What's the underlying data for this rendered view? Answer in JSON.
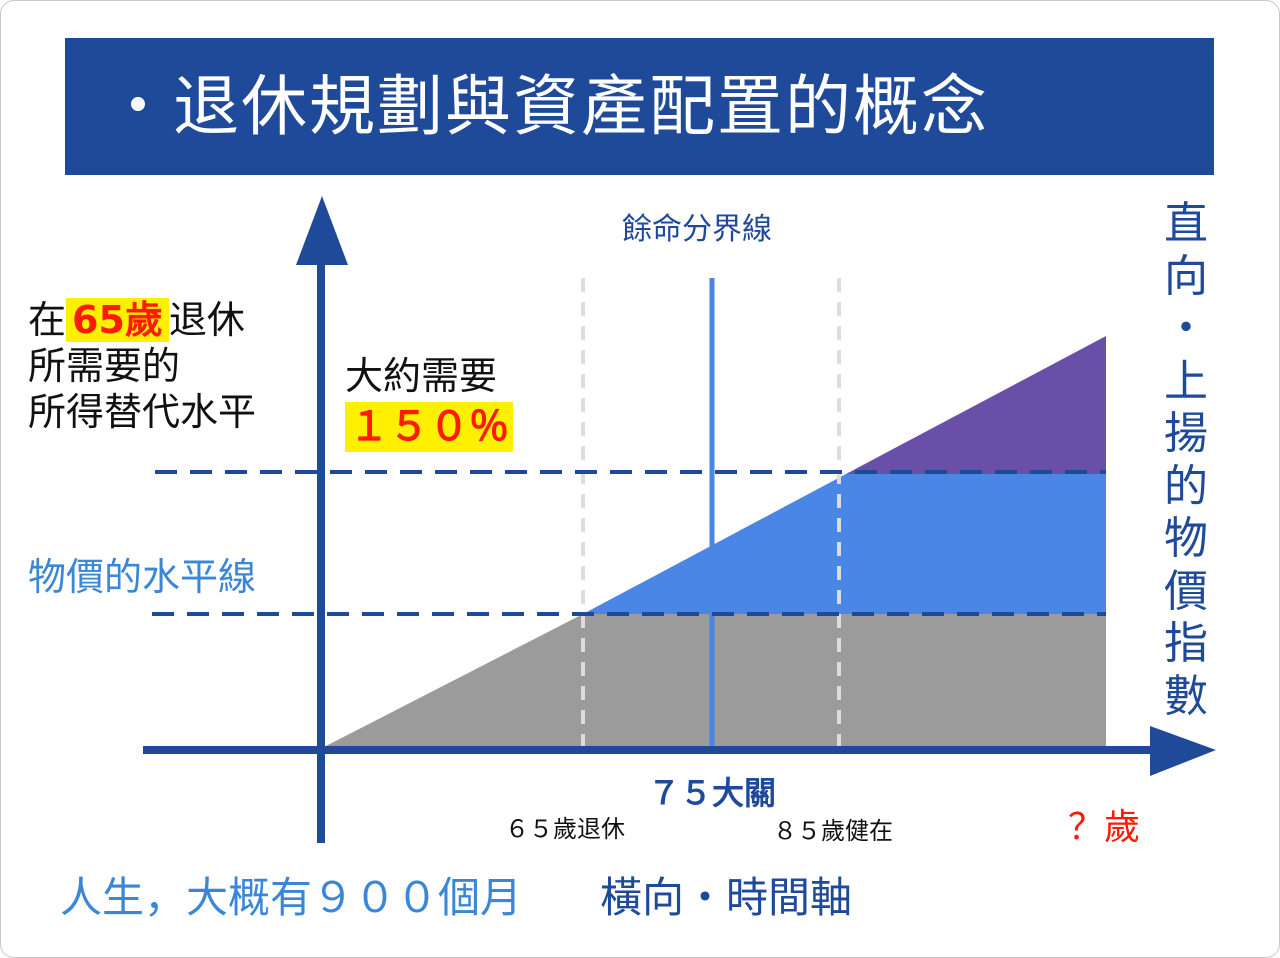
{
  "title": "・退休規劃與資產配置的概念",
  "left_label": {
    "line1_prefix": "在",
    "line1_age": "65歲",
    "line1_suffix": "退休",
    "line2": "所需要的",
    "line3": "所得替代水平"
  },
  "need_label": {
    "line1": "大約需要",
    "percent": "１５０％"
  },
  "price_level_label": "物價的水平線",
  "life_boundary_label": "餘命分界線",
  "vertical_axis_label": [
    "直",
    "向",
    "・",
    "上",
    "揚",
    "的",
    "物",
    "價",
    "指",
    "數"
  ],
  "x_labels": {
    "retire": "６５歲退休",
    "milestone": "７５大關",
    "healthy": "８５歲健在",
    "unknown": "？歲"
  },
  "bottom": {
    "life_months": "人生，大概有９００個月",
    "horizontal_axis": "橫向・時間軸"
  },
  "colors": {
    "title_bg": "#1f4a9a",
    "axis": "#1f4a9a",
    "gray_area": "#9b9b9b",
    "blue_area": "#4a86e6",
    "purple_area": "#6a4fa8",
    "boundary_line": "#4a86e6",
    "highlight": "#ffef00",
    "accent_red": "#ff1a00",
    "price_label": "#3a86d8"
  }
}
